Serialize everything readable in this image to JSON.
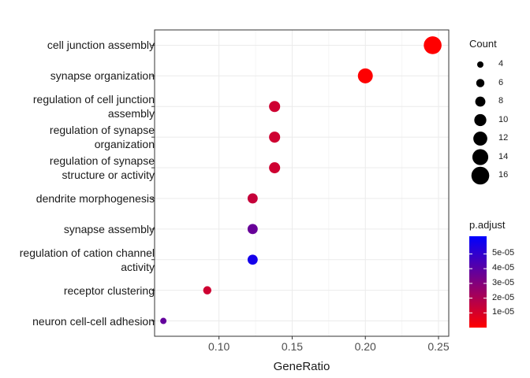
{
  "chart_data": {
    "type": "scatter",
    "title": "",
    "xlabel": "GeneRatio",
    "ylabel": "",
    "xlim": [
      0.056,
      0.257
    ],
    "x_ticks": [
      "0.10",
      "0.15",
      "0.20",
      "0.25"
    ],
    "x_tick_values": [
      0.1,
      0.15,
      0.2,
      0.25
    ],
    "grid": true,
    "legend_placement": "right",
    "categories": [
      "cell junction assembly",
      "synapse organization",
      "regulation of cell junction\nassembly",
      "regulation of synapse\norganization",
      "regulation of synapse\nstructure or activity",
      "dendrite morphogenesis",
      "synapse assembly",
      "regulation of cation channel\nactivity",
      "receptor clustering",
      "neuron cell-cell adhesion"
    ],
    "points": [
      {
        "term": "cell junction assembly",
        "x": 0.246,
        "count": 16,
        "p_adjust": 1e-07
      },
      {
        "term": "synapse organization",
        "x": 0.2,
        "count": 13,
        "p_adjust": 2e-07
      },
      {
        "term": "regulation of cell junction assembly",
        "x": 0.138,
        "count": 9,
        "p_adjust": 1.2e-05
      },
      {
        "term": "regulation of synapse organization",
        "x": 0.138,
        "count": 9,
        "p_adjust": 1.2e-05
      },
      {
        "term": "regulation of synapse structure or activity",
        "x": 0.138,
        "count": 9,
        "p_adjust": 1.2e-05
      },
      {
        "term": "dendrite morphogenesis",
        "x": 0.123,
        "count": 8,
        "p_adjust": 1.4e-05
      },
      {
        "term": "synapse assembly",
        "x": 0.123,
        "count": 8,
        "p_adjust": 3.7e-05
      },
      {
        "term": "regulation of cation channel activity",
        "x": 0.123,
        "count": 8,
        "p_adjust": 5.7e-05
      },
      {
        "term": "receptor clustering",
        "x": 0.092,
        "count": 6,
        "p_adjust": 1.2e-05
      },
      {
        "term": "neuron cell-cell adhesion",
        "x": 0.062,
        "count": 4,
        "p_adjust": 3.8e-05
      }
    ],
    "size_legend": {
      "title": "Count",
      "values": [
        4,
        6,
        8,
        10,
        12,
        14,
        16
      ],
      "labels": [
        "4",
        "6",
        "8",
        "10",
        "12",
        "14",
        "16"
      ]
    },
    "color_legend": {
      "title": "p.adjust",
      "range": [
        0,
        6.2e-05
      ],
      "tick_values": [
        1e-05,
        2e-05,
        3e-05,
        4e-05,
        5e-05
      ],
      "labels": [
        "1e-05",
        "2e-05",
        "3e-05",
        "4e-05",
        "5e-05"
      ],
      "low_color": "#ff0000",
      "high_color": "#0000ff"
    },
    "colors": {
      "panel_border": "#333333",
      "grid": "#ebebeb"
    }
  }
}
